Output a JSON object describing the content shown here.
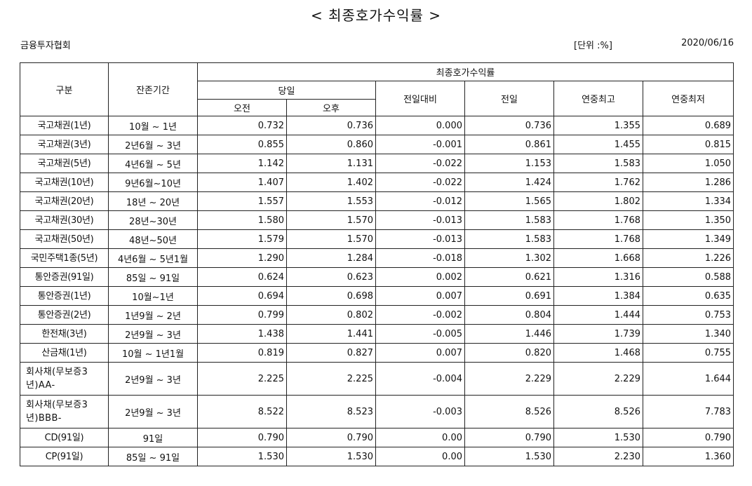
{
  "title": "< 최종호가수익률 >",
  "org": "금융투자협회",
  "unit": "[단위 :%]",
  "date": "2020/06/16",
  "headers": {
    "category": "구분",
    "term": "잔존기간",
    "group": "최종호가수익률",
    "today": "당일",
    "am": "오전",
    "pm": "오후",
    "change": "전일대비",
    "prev": "전일",
    "year_high": "연중최고",
    "year_low": "연중최저"
  },
  "rows": [
    {
      "name": "국고채권(1년)",
      "term": "10월 ~ 1년",
      "am": "0.732",
      "pm": "0.736",
      "change": "0.000",
      "prev": "0.736",
      "high": "1.355",
      "low": "0.689"
    },
    {
      "name": "국고채권(3년)",
      "term": "2년6월 ~ 3년",
      "am": "0.855",
      "pm": "0.860",
      "change": "-0.001",
      "prev": "0.861",
      "high": "1.455",
      "low": "0.815"
    },
    {
      "name": "국고채권(5년)",
      "term": "4년6월 ~ 5년",
      "am": "1.142",
      "pm": "1.131",
      "change": "-0.022",
      "prev": "1.153",
      "high": "1.583",
      "low": "1.050"
    },
    {
      "name": "국고채권(10년)",
      "term": "9년6월~10년",
      "am": "1.407",
      "pm": "1.402",
      "change": "-0.022",
      "prev": "1.424",
      "high": "1.762",
      "low": "1.286"
    },
    {
      "name": "국고채권(20년)",
      "term": "18년 ~ 20년",
      "am": "1.557",
      "pm": "1.553",
      "change": "-0.012",
      "prev": "1.565",
      "high": "1.802",
      "low": "1.334"
    },
    {
      "name": "국고채권(30년)",
      "term": "28년~30년",
      "am": "1.580",
      "pm": "1.570",
      "change": "-0.013",
      "prev": "1.583",
      "high": "1.768",
      "low": "1.350"
    },
    {
      "name": "국고채권(50년)",
      "term": "48년~50년",
      "am": "1.579",
      "pm": "1.570",
      "change": "-0.013",
      "prev": "1.583",
      "high": "1.768",
      "low": "1.349"
    },
    {
      "name": "국민주택1종(5년)",
      "term": "4년6월 ~ 5년1월",
      "am": "1.290",
      "pm": "1.284",
      "change": "-0.018",
      "prev": "1.302",
      "high": "1.668",
      "low": "1.226"
    },
    {
      "name": "통안증권(91일)",
      "term": "85일 ~ 91일",
      "am": "0.624",
      "pm": "0.623",
      "change": "0.002",
      "prev": "0.621",
      "high": "1.316",
      "low": "0.588"
    },
    {
      "name": "통안증권(1년)",
      "term": "10월~1년",
      "am": "0.694",
      "pm": "0.698",
      "change": "0.007",
      "prev": "0.691",
      "high": "1.384",
      "low": "0.635"
    },
    {
      "name": "통안증권(2년)",
      "term": "1년9월 ~ 2년",
      "am": "0.799",
      "pm": "0.802",
      "change": "-0.002",
      "prev": "0.804",
      "high": "1.444",
      "low": "0.753"
    },
    {
      "name": "한전채(3년)",
      "term": "2년9월 ~ 3년",
      "am": "1.438",
      "pm": "1.441",
      "change": "-0.005",
      "prev": "1.446",
      "high": "1.739",
      "low": "1.340"
    },
    {
      "name": "산금채(1년)",
      "term": "10월 ~ 1년1월",
      "am": "0.819",
      "pm": "0.827",
      "change": "0.007",
      "prev": "0.820",
      "high": "1.468",
      "low": "0.755"
    },
    {
      "name": "회사채(무보증3년)AA-",
      "term": "2년9월 ~ 3년",
      "am": "2.225",
      "pm": "2.225",
      "change": "-0.004",
      "prev": "2.229",
      "high": "2.229",
      "low": "1.644"
    },
    {
      "name": "회사채(무보증3년)BBB-",
      "term": "2년9월 ~ 3년",
      "am": "8.522",
      "pm": "8.523",
      "change": "-0.003",
      "prev": "8.526",
      "high": "8.526",
      "low": "7.783"
    },
    {
      "name": "CD(91일)",
      "term": "91일",
      "am": "0.790",
      "pm": "0.790",
      "change": "0.00",
      "prev": "0.790",
      "high": "1.530",
      "low": "0.790"
    },
    {
      "name": "CP(91일)",
      "term": "85일 ~ 91일",
      "am": "1.530",
      "pm": "1.530",
      "change": "0.00",
      "prev": "1.530",
      "high": "2.230",
      "low": "1.360"
    }
  ]
}
